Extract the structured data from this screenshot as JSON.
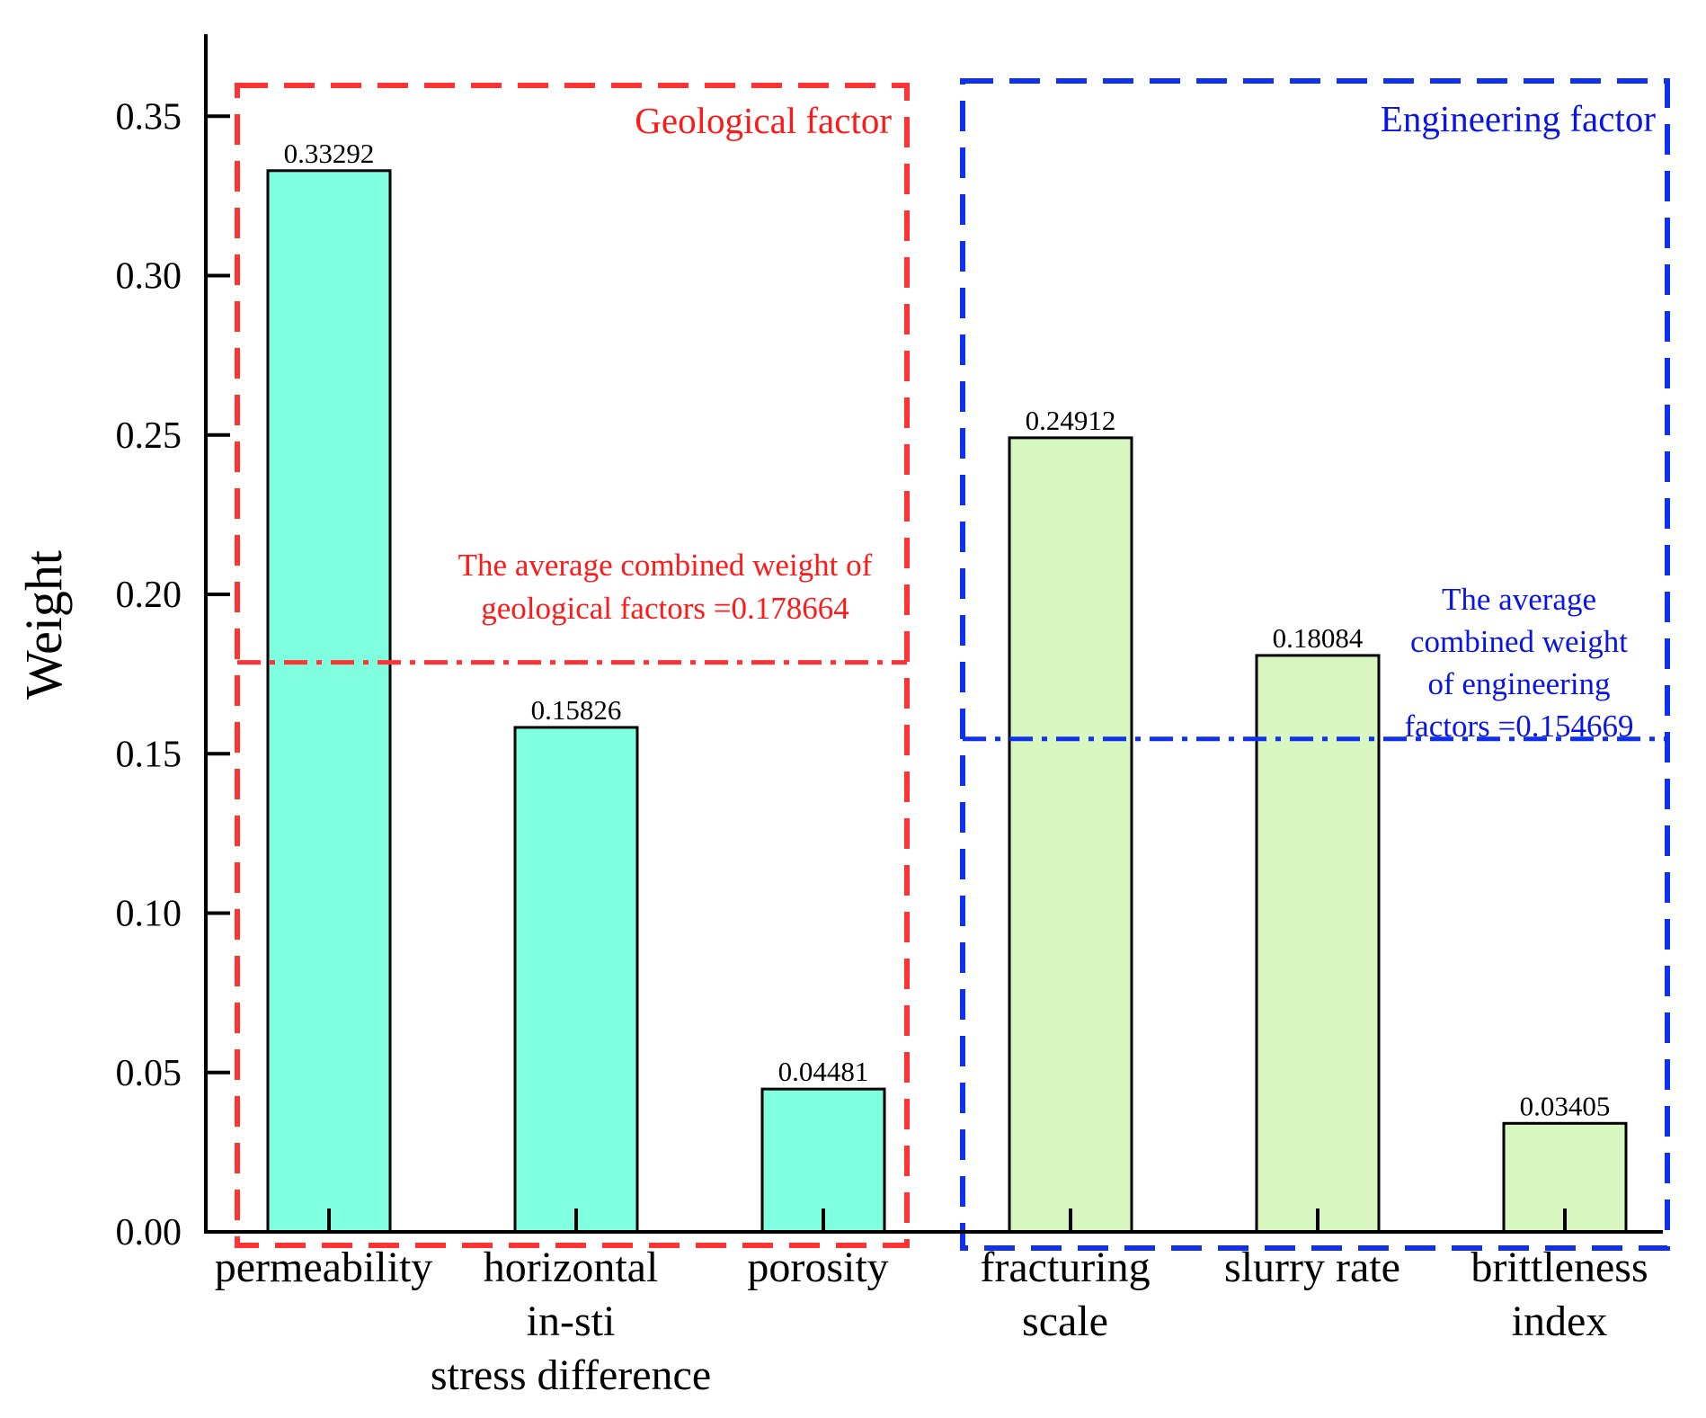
{
  "chart_data": {
    "type": "bar",
    "ylabel": "Weight",
    "ylim": [
      0,
      0.37
    ],
    "yticks": [
      "0.00",
      "0.05",
      "0.10",
      "0.15",
      "0.20",
      "0.25",
      "0.30",
      "0.35"
    ],
    "categories": [
      [
        "permeability"
      ],
      [
        "horizontal",
        "in-sti",
        "stress difference"
      ],
      [
        "porosity"
      ],
      [
        "fracturing",
        "scale"
      ],
      [
        "slurry rate"
      ],
      [
        "brittleness",
        "index"
      ]
    ],
    "values": [
      0.33292,
      0.15826,
      0.04481,
      0.24912,
      0.18084,
      0.03405
    ],
    "value_labels": [
      "0.33292",
      "0.15826",
      "0.04481",
      "0.24912",
      "0.18084",
      "0.03405"
    ],
    "groups": [
      {
        "name": "Geological factor",
        "color": "#ff3333",
        "bar_color": "#7fffe0",
        "categories": [
          0,
          1,
          2
        ],
        "average": 0.178664,
        "average_label": [
          "The average combined weight of",
          "geological factors =0.178664"
        ]
      },
      {
        "name": "Engineering factor",
        "color": "#1030f0",
        "bar_color": "#d8f7c0",
        "categories": [
          3,
          4,
          5
        ],
        "average": 0.154669,
        "average_label": [
          "The average",
          "combined weight",
          "of engineering",
          "factors =0.154669"
        ]
      }
    ]
  }
}
